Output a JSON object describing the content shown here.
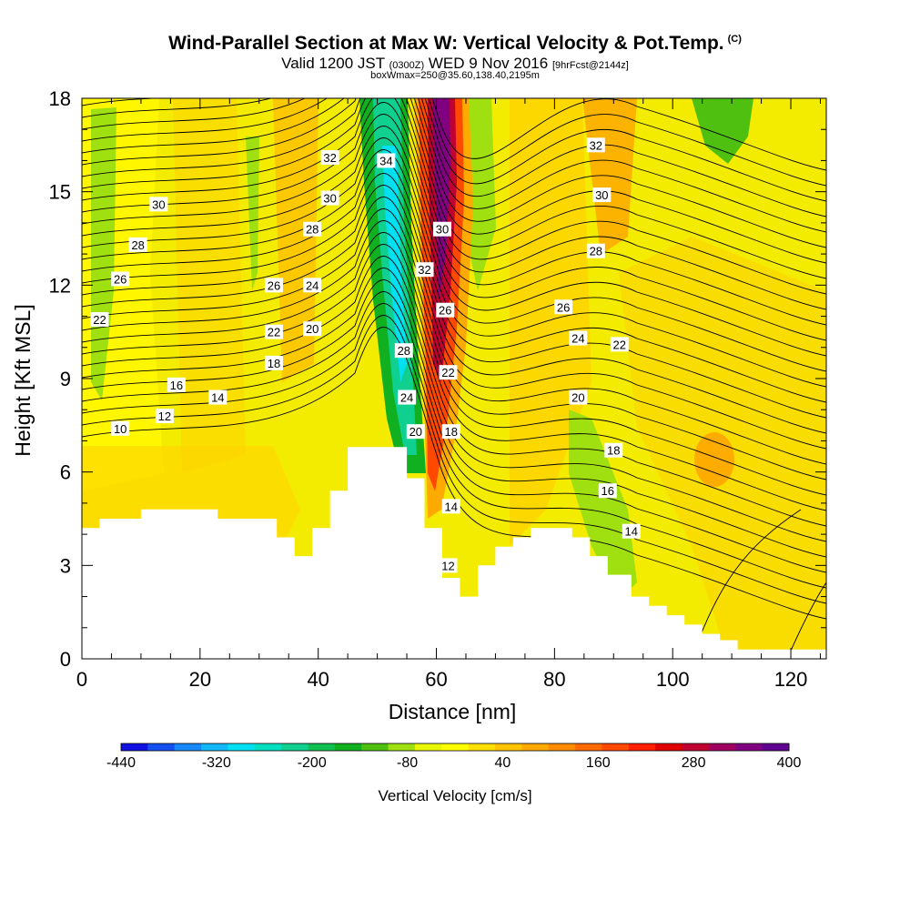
{
  "header": {
    "title": "Wind-Parallel Section at Max W: Vertical Velocity & Pot.Temp.",
    "title_mark": "(C)",
    "valid_prefix": "Valid 1200 JST",
    "valid_utc": "(0300Z)",
    "valid_date": "WED 9 Nov 2016",
    "forecast": "[9hrFcst@2144z]",
    "box_info": "boxWmax=250@35.60,138.40,2195m"
  },
  "chart_data": {
    "type": "heatmap",
    "xlabel": "Distance [nm]",
    "ylabel": "Height [Kft MSL]",
    "xlim": [
      0,
      126
    ],
    "ylim": [
      0,
      18
    ],
    "x_ticks": [
      0,
      20,
      40,
      60,
      80,
      100,
      120
    ],
    "y_ticks": [
      0,
      3,
      6,
      9,
      12,
      15,
      18
    ],
    "x_tick_labels": [
      "0",
      "20",
      "40",
      "60",
      "80",
      "100",
      "120"
    ],
    "y_tick_labels": [
      "0",
      "3",
      "6",
      "9",
      "12",
      "15",
      "18"
    ],
    "colorbar": {
      "label": "Vertical Velocity [cm/s]",
      "tick_labels": [
        "-440",
        "-320",
        "-200",
        "-80",
        "40",
        "160",
        "280",
        "400"
      ],
      "colors": [
        "#1010e0",
        "#1450f0",
        "#1888f8",
        "#10b8f8",
        "#00e0f0",
        "#00e0c0",
        "#10d090",
        "#10c050",
        "#10b020",
        "#50c010",
        "#a0e010",
        "#e8f800",
        "#ffff00",
        "#ffe000",
        "#ffc400",
        "#ffaa00",
        "#ff8c00",
        "#ff6a00",
        "#ff4800",
        "#ff2000",
        "#e00000",
        "#c00030",
        "#a00060",
        "#800080",
        "#600090"
      ]
    },
    "terrain": [
      [
        0,
        4.2
      ],
      [
        3,
        4.2
      ],
      [
        3,
        4.5
      ],
      [
        10,
        4.5
      ],
      [
        10,
        4.8
      ],
      [
        23,
        4.8
      ],
      [
        23,
        4.5
      ],
      [
        33,
        4.5
      ],
      [
        33,
        3.9
      ],
      [
        36,
        3.9
      ],
      [
        36,
        3.3
      ],
      [
        39,
        3.3
      ],
      [
        39,
        4.2
      ],
      [
        42,
        4.2
      ],
      [
        42,
        5.4
      ],
      [
        45,
        5.4
      ],
      [
        45,
        6.8
      ],
      [
        55,
        6.8
      ],
      [
        55,
        5.8
      ],
      [
        58,
        5.8
      ],
      [
        58,
        4.2
      ],
      [
        61,
        4.2
      ],
      [
        61,
        2.6
      ],
      [
        64,
        2.6
      ],
      [
        64,
        2.0
      ],
      [
        67,
        2.0
      ],
      [
        67,
        3.0
      ],
      [
        70,
        3.0
      ],
      [
        70,
        3.6
      ],
      [
        73,
        3.6
      ],
      [
        73,
        3.9
      ],
      [
        76,
        3.9
      ],
      [
        76,
        4.2
      ],
      [
        83,
        4.2
      ],
      [
        83,
        3.9
      ],
      [
        86,
        3.9
      ],
      [
        86,
        3.3
      ],
      [
        89,
        3.3
      ],
      [
        89,
        2.7
      ],
      [
        93,
        2.7
      ],
      [
        93,
        2.0
      ],
      [
        96,
        2.0
      ],
      [
        96,
        1.7
      ],
      [
        99,
        1.7
      ],
      [
        99,
        1.4
      ],
      [
        102,
        1.4
      ],
      [
        102,
        1.1
      ],
      [
        105,
        1.1
      ],
      [
        105,
        0.8
      ],
      [
        108,
        0.8
      ],
      [
        108,
        0.6
      ],
      [
        111,
        0.6
      ],
      [
        111,
        0.3
      ],
      [
        126,
        0.3
      ]
    ],
    "theta_contours": [
      {
        "label": "10",
        "x": 6.5,
        "y": 7.4
      },
      {
        "label": "12",
        "x": 14,
        "y": 7.8
      },
      {
        "label": "14",
        "x": 23,
        "y": 8.4
      },
      {
        "label": "16",
        "x": 16,
        "y": 8.8
      },
      {
        "label": "18",
        "x": 32.5,
        "y": 9.5
      },
      {
        "label": "20",
        "x": 39,
        "y": 10.6
      },
      {
        "label": "22",
        "x": 3,
        "y": 10.9
      },
      {
        "label": "22",
        "x": 32.5,
        "y": 10.5
      },
      {
        "label": "24",
        "x": 39,
        "y": 12.0
      },
      {
        "label": "26",
        "x": 6.5,
        "y": 12.2
      },
      {
        "label": "26",
        "x": 32.5,
        "y": 12.0
      },
      {
        "label": "28",
        "x": 9.5,
        "y": 13.3
      },
      {
        "label": "28",
        "x": 39,
        "y": 13.8
      },
      {
        "label": "30",
        "x": 13,
        "y": 14.6
      },
      {
        "label": "30",
        "x": 42,
        "y": 14.8
      },
      {
        "label": "32",
        "x": 42,
        "y": 16.1
      },
      {
        "label": "34",
        "x": 51.5,
        "y": 16.0
      },
      {
        "label": "30",
        "x": 61,
        "y": 13.8
      },
      {
        "label": "32",
        "x": 58,
        "y": 12.5
      },
      {
        "label": "26",
        "x": 61.5,
        "y": 11.2
      },
      {
        "label": "28",
        "x": 54.5,
        "y": 9.9
      },
      {
        "label": "22",
        "x": 62,
        "y": 9.2
      },
      {
        "label": "24",
        "x": 55,
        "y": 8.4
      },
      {
        "label": "20",
        "x": 56.5,
        "y": 7.3
      },
      {
        "label": "18",
        "x": 62.5,
        "y": 7.3
      },
      {
        "label": "14",
        "x": 62.5,
        "y": 4.9
      },
      {
        "label": "12",
        "x": 62,
        "y": 3.0
      },
      {
        "label": "32",
        "x": 87,
        "y": 16.5
      },
      {
        "label": "30",
        "x": 88,
        "y": 14.9
      },
      {
        "label": "28",
        "x": 87,
        "y": 13.1
      },
      {
        "label": "26",
        "x": 81.5,
        "y": 11.3
      },
      {
        "label": "24",
        "x": 84,
        "y": 10.3
      },
      {
        "label": "22",
        "x": 91,
        "y": 10.1
      },
      {
        "label": "20",
        "x": 84,
        "y": 8.4
      },
      {
        "label": "18",
        "x": 90,
        "y": 6.7
      },
      {
        "label": "16",
        "x": 89,
        "y": 5.4
      },
      {
        "label": "14",
        "x": 93,
        "y": 4.1
      }
    ]
  }
}
